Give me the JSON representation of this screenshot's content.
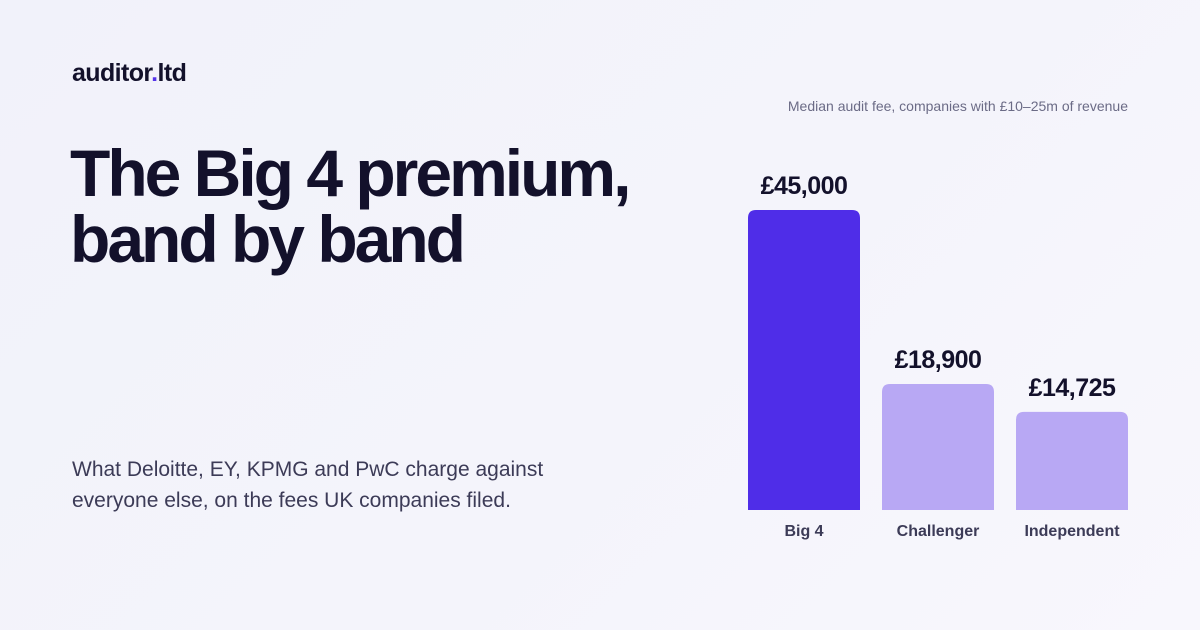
{
  "brand": {
    "name": "auditor",
    "dot": ".",
    "suffix": "ltd"
  },
  "headline": {
    "line1": "The Big 4 premium,",
    "line2": "band by band"
  },
  "subtitle": "What Deloitte, EY, KPMG and PwC charge against everyone else, on the fees UK companies filed.",
  "colors": {
    "highlight": "#4f2de8",
    "muted": "#b8a8f4",
    "accent_dot": "#5533ea"
  },
  "chart_data": {
    "type": "bar",
    "title": "Median audit fee, companies with £10–25m of revenue",
    "categories": [
      "Big 4",
      "Challenger",
      "Independent"
    ],
    "values": [
      45000,
      18900,
      14725
    ],
    "value_labels": [
      "£45,000",
      "£18,900",
      "£14,725"
    ],
    "highlighted": [
      true,
      false,
      false
    ],
    "ylim": [
      0,
      45000
    ],
    "xlabel": "",
    "ylabel": "",
    "grid": false,
    "legend": "none"
  }
}
